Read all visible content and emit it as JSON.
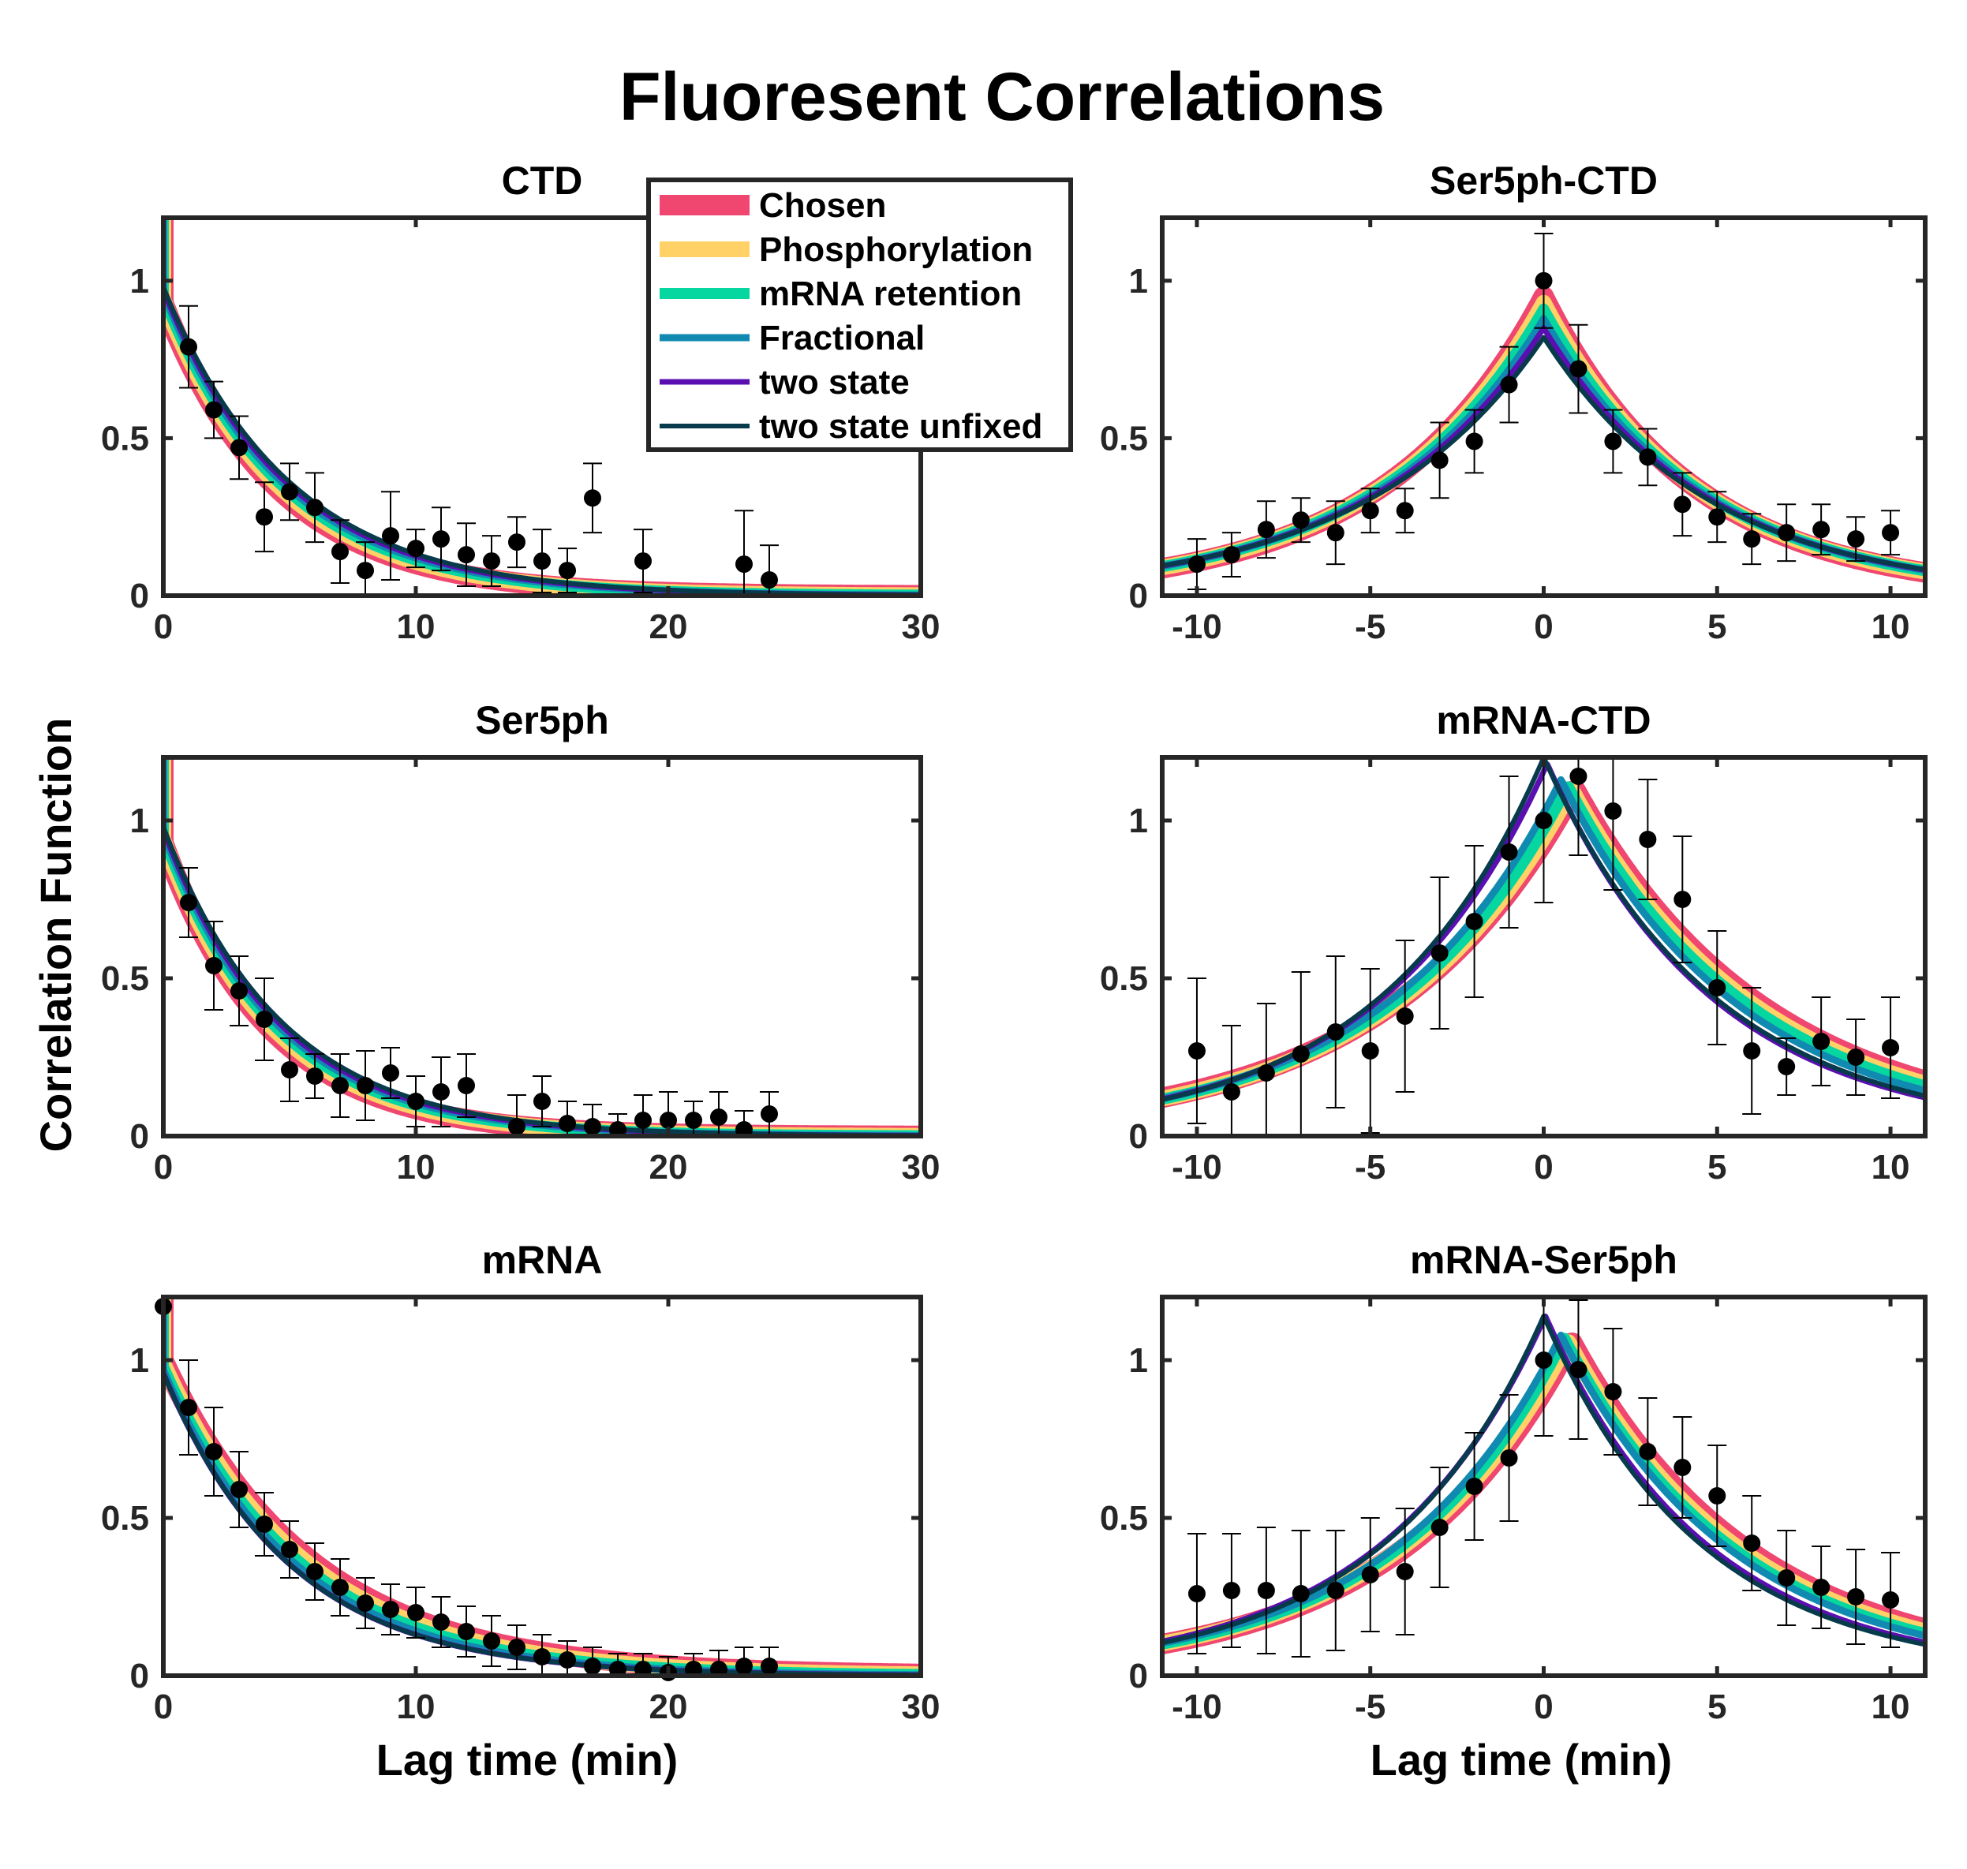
{
  "figure": {
    "title": "Fluoresent Correlations",
    "ylabel": "Correlation Function",
    "xlabel": "Lag time (min)"
  },
  "legend": {
    "entries": [
      {
        "label": "Chosen",
        "color": "#ef476f"
      },
      {
        "label": "Phosphorylation",
        "color": "#ffd166"
      },
      {
        "label": "mRNA retention",
        "color": "#06d6a0"
      },
      {
        "label": "Fractional",
        "color": "#118ab2"
      },
      {
        "label": "two state",
        "color": "#5a0fb0"
      },
      {
        "label": "two state unfixed",
        "color": "#073b4c"
      }
    ]
  },
  "chart_data": [
    {
      "type": "line",
      "title": "CTD",
      "xlim": [
        0,
        30
      ],
      "ylim": [
        0,
        1.2
      ],
      "xticks": [
        0,
        10,
        20,
        30
      ],
      "yticks": [
        0,
        0.5,
        1
      ],
      "xtick_labels": [
        "0",
        "10",
        "20",
        "30"
      ],
      "ytick_labels": [
        "0",
        "0.5",
        "1"
      ],
      "x_points": [
        1,
        2,
        3,
        4,
        5,
        6,
        7,
        8,
        9,
        10,
        11,
        12,
        13,
        14,
        15,
        16,
        17,
        19,
        23,
        24
      ],
      "y_points": [
        0.79,
        0.59,
        0.47,
        0.25,
        0.33,
        0.28,
        0.14,
        0.08,
        0.19,
        0.15,
        0.18,
        0.13,
        0.11,
        0.17,
        0.11,
        0.08,
        0.31,
        0.11,
        0.1,
        0.05
      ],
      "y_errors": [
        0.13,
        0.09,
        0.1,
        0.11,
        0.09,
        0.11,
        0.1,
        0.09,
        0.14,
        0.06,
        0.1,
        0.1,
        0.08,
        0.08,
        0.1,
        0.07,
        0.11,
        0.1,
        0.17,
        0.11
      ],
      "model_curves": [
        {
          "name": "Chosen",
          "a0": 0.93,
          "tau": 4.5
        },
        {
          "name": "Phosphorylation",
          "a0": 0.94,
          "tau": 4.6
        },
        {
          "name": "mRNA retention",
          "a0": 0.95,
          "tau": 4.7
        },
        {
          "name": "Fractional",
          "a0": 0.96,
          "tau": 4.8
        },
        {
          "name": "two state",
          "a0": 0.97,
          "tau": 4.9
        },
        {
          "name": "two state unfixed",
          "a0": 0.98,
          "tau": 5.0
        }
      ]
    },
    {
      "type": "line",
      "title": "Ser5ph-CTD",
      "xlim": [
        -11,
        11
      ],
      "ylim": [
        0,
        1.2
      ],
      "xticks": [
        -10,
        -5,
        0,
        5,
        10
      ],
      "yticks": [
        0,
        0.5,
        1
      ],
      "xtick_labels": [
        "-10",
        "-5",
        "0",
        "5",
        "10"
      ],
      "ytick_labels": [
        "0",
        "0.5",
        "1"
      ],
      "x_points": [
        -10,
        -9,
        -8,
        -7,
        -6,
        -5,
        -4,
        -3,
        -2,
        -1,
        0,
        1,
        2,
        3,
        4,
        5,
        6,
        7,
        8,
        9,
        10
      ],
      "y_points": [
        0.1,
        0.13,
        0.21,
        0.24,
        0.2,
        0.27,
        0.27,
        0.43,
        0.49,
        0.67,
        1.0,
        0.72,
        0.49,
        0.44,
        0.29,
        0.25,
        0.18,
        0.2,
        0.21,
        0.18,
        0.2
      ],
      "y_errors": [
        0.08,
        0.07,
        0.09,
        0.07,
        0.1,
        0.07,
        0.07,
        0.12,
        0.1,
        0.12,
        0.15,
        0.14,
        0.1,
        0.09,
        0.1,
        0.08,
        0.08,
        0.09,
        0.08,
        0.07,
        0.07
      ],
      "model_curves": [
        {
          "name": "Chosen",
          "peak": 0.95,
          "shift": 0,
          "tau_left": 4.6,
          "tau_right": 4.3
        },
        {
          "name": "Phosphorylation",
          "peak": 0.93,
          "shift": 0,
          "tau_left": 4.7,
          "tau_right": 4.4
        },
        {
          "name": "mRNA retention",
          "peak": 0.91,
          "shift": 0,
          "tau_left": 4.8,
          "tau_right": 4.5
        },
        {
          "name": "Fractional",
          "peak": 0.88,
          "shift": 0,
          "tau_left": 4.9,
          "tau_right": 4.6
        },
        {
          "name": "two state",
          "peak": 0.85,
          "shift": 0,
          "tau_left": 5.0,
          "tau_right": 4.7
        },
        {
          "name": "two state unfixed",
          "peak": 0.82,
          "shift": 0,
          "tau_left": 5.1,
          "tau_right": 4.8
        }
      ]
    },
    {
      "type": "line",
      "title": "Ser5ph",
      "xlim": [
        0,
        30
      ],
      "ylim": [
        0,
        1.2
      ],
      "xticks": [
        0,
        10,
        20,
        30
      ],
      "yticks": [
        0,
        0.5,
        1
      ],
      "xtick_labels": [
        "0",
        "10",
        "20",
        "30"
      ],
      "ytick_labels": [
        "0",
        "0.5",
        "1"
      ],
      "x_points": [
        1,
        2,
        3,
        4,
        5,
        6,
        7,
        8,
        9,
        10,
        11,
        12,
        14,
        15,
        16,
        17,
        18,
        19,
        20,
        21,
        22,
        23,
        24
      ],
      "y_points": [
        0.74,
        0.54,
        0.46,
        0.37,
        0.21,
        0.19,
        0.16,
        0.16,
        0.2,
        0.11,
        0.14,
        0.16,
        0.03,
        0.11,
        0.04,
        0.03,
        0.02,
        0.05,
        0.05,
        0.05,
        0.06,
        0.02,
        0.07
      ],
      "y_errors": [
        0.11,
        0.14,
        0.11,
        0.13,
        0.1,
        0.07,
        0.1,
        0.11,
        0.08,
        0.08,
        0.11,
        0.1,
        0.1,
        0.08,
        0.07,
        0.07,
        0.05,
        0.08,
        0.09,
        0.06,
        0.08,
        0.06,
        0.07
      ],
      "model_curves": [
        {
          "name": "Chosen",
          "a0": 0.93,
          "tau": 4.2
        },
        {
          "name": "Phosphorylation",
          "a0": 0.94,
          "tau": 4.3
        },
        {
          "name": "mRNA retention",
          "a0": 0.95,
          "tau": 4.4
        },
        {
          "name": "Fractional",
          "a0": 0.96,
          "tau": 4.5
        },
        {
          "name": "two state",
          "a0": 0.97,
          "tau": 4.6
        },
        {
          "name": "two state unfixed",
          "a0": 0.98,
          "tau": 4.7
        }
      ]
    },
    {
      "type": "line",
      "title": "mRNA-CTD",
      "xlim": [
        -11,
        11
      ],
      "ylim": [
        0,
        1.2
      ],
      "xticks": [
        -10,
        -5,
        0,
        5,
        10
      ],
      "yticks": [
        0,
        0.5,
        1
      ],
      "xtick_labels": [
        "-10",
        "-5",
        "0",
        "5",
        "10"
      ],
      "ytick_labels": [
        "0",
        "0.5",
        "1"
      ],
      "x_points": [
        -10,
        -9,
        -8,
        -7,
        -6,
        -5,
        -4,
        -3,
        -2,
        -1,
        0,
        1,
        2,
        3,
        4,
        5,
        6,
        7,
        8,
        9,
        10
      ],
      "y_points": [
        0.27,
        0.14,
        0.2,
        0.26,
        0.33,
        0.27,
        0.38,
        0.58,
        0.68,
        0.9,
        1.0,
        1.14,
        1.03,
        0.94,
        0.75,
        0.47,
        0.27,
        0.22,
        0.3,
        0.25,
        0.28
      ],
      "y_errors": [
        0.23,
        0.21,
        0.22,
        0.26,
        0.24,
        0.26,
        0.24,
        0.24,
        0.24,
        0.24,
        0.26,
        0.25,
        0.25,
        0.19,
        0.2,
        0.18,
        0.2,
        0.09,
        0.14,
        0.12,
        0.16
      ],
      "model_curves": [
        {
          "name": "Chosen",
          "peak": 1.1,
          "shift": 0.9,
          "tau_left": 5.4,
          "tau_right": 5.5
        },
        {
          "name": "Phosphorylation",
          "peak": 1.1,
          "shift": 0.8,
          "tau_left": 5.3,
          "tau_right": 5.4
        },
        {
          "name": "mRNA retention",
          "peak": 1.11,
          "shift": 0.7,
          "tau_left": 5.2,
          "tau_right": 5.3
        },
        {
          "name": "Fractional",
          "peak": 1.13,
          "shift": 0.5,
          "tau_left": 5.1,
          "tau_right": 5.1
        },
        {
          "name": "two state",
          "peak": 1.18,
          "shift": 0.1,
          "tau_left": 4.8,
          "tau_right": 4.8
        },
        {
          "name": "two state unfixed",
          "peak": 1.2,
          "shift": 0,
          "tau_left": 4.7,
          "tau_right": 4.9
        }
      ]
    },
    {
      "type": "line",
      "title": "mRNA",
      "xlim": [
        0,
        30
      ],
      "ylim": [
        0,
        1.2
      ],
      "xticks": [
        0,
        10,
        20,
        30
      ],
      "yticks": [
        0,
        0.5,
        1
      ],
      "xtick_labels": [
        "0",
        "10",
        "20",
        "30"
      ],
      "ytick_labels": [
        "0",
        "0.5",
        "1"
      ],
      "x_points": [
        0,
        1,
        2,
        3,
        4,
        5,
        6,
        7,
        8,
        9,
        10,
        11,
        12,
        13,
        14,
        15,
        16,
        17,
        18,
        19,
        20,
        21,
        22,
        23,
        24
      ],
      "y_points": [
        1.17,
        0.85,
        0.71,
        0.59,
        0.48,
        0.4,
        0.33,
        0.28,
        0.23,
        0.21,
        0.2,
        0.17,
        0.14,
        0.11,
        0.09,
        0.06,
        0.05,
        0.03,
        0.02,
        0.02,
        0.01,
        0.02,
        0.02,
        0.03,
        0.03
      ],
      "y_errors": [
        0.0,
        0.15,
        0.14,
        0.12,
        0.1,
        0.09,
        0.09,
        0.09,
        0.08,
        0.08,
        0.08,
        0.08,
        0.08,
        0.08,
        0.07,
        0.07,
        0.06,
        0.06,
        0.05,
        0.05,
        0.05,
        0.05,
        0.06,
        0.06,
        0.06
      ],
      "model_curves": [
        {
          "name": "Chosen",
          "a0": 1.0,
          "tau": 5.8
        },
        {
          "name": "Phosphorylation",
          "a0": 0.99,
          "tau": 5.6
        },
        {
          "name": "mRNA retention",
          "a0": 0.98,
          "tau": 5.4
        },
        {
          "name": "Fractional",
          "a0": 0.97,
          "tau": 5.2
        },
        {
          "name": "two state",
          "a0": 0.96,
          "tau": 5.0
        },
        {
          "name": "two state unfixed",
          "a0": 0.96,
          "tau": 5.0
        }
      ]
    },
    {
      "type": "line",
      "title": "mRNA-Ser5ph",
      "xlim": [
        -11,
        11
      ],
      "ylim": [
        0,
        1.2
      ],
      "xticks": [
        -10,
        -5,
        0,
        5,
        10
      ],
      "yticks": [
        0,
        0.5,
        1
      ],
      "xtick_labels": [
        "-10",
        "-5",
        "0",
        "5",
        "10"
      ],
      "ytick_labels": [
        "0",
        "0.5",
        "1"
      ],
      "x_points": [
        -10,
        -9,
        -8,
        -7,
        -6,
        -5,
        -4,
        -3,
        -2,
        -1,
        0,
        1,
        2,
        3,
        4,
        5,
        6,
        7,
        8,
        9,
        10
      ],
      "y_points": [
        0.26,
        0.27,
        0.27,
        0.26,
        0.27,
        0.32,
        0.33,
        0.47,
        0.6,
        0.69,
        1.0,
        0.97,
        0.9,
        0.71,
        0.66,
        0.57,
        0.42,
        0.31,
        0.28,
        0.25,
        0.24
      ],
      "y_errors": [
        0.19,
        0.18,
        0.2,
        0.2,
        0.19,
        0.18,
        0.2,
        0.19,
        0.17,
        0.2,
        0.24,
        0.22,
        0.2,
        0.17,
        0.16,
        0.16,
        0.15,
        0.15,
        0.13,
        0.15,
        0.15
      ],
      "model_curves": [
        {
          "name": "Chosen",
          "peak": 1.06,
          "shift": 0.8,
          "tau_left": 5.0,
          "tau_right": 5.2
        },
        {
          "name": "Phosphorylation",
          "peak": 1.06,
          "shift": 0.7,
          "tau_left": 5.0,
          "tau_right": 5.1
        },
        {
          "name": "mRNA retention",
          "peak": 1.07,
          "shift": 0.6,
          "tau_left": 4.9,
          "tau_right": 5.0
        },
        {
          "name": "Fractional",
          "peak": 1.08,
          "shift": 0.5,
          "tau_left": 4.9,
          "tau_right": 4.9
        },
        {
          "name": "two state",
          "peak": 1.14,
          "shift": 0.05,
          "tau_left": 4.7,
          "tau_right": 4.6
        },
        {
          "name": "two state unfixed",
          "peak": 1.14,
          "shift": 0,
          "tau_left": 4.6,
          "tau_right": 4.5
        }
      ]
    }
  ]
}
